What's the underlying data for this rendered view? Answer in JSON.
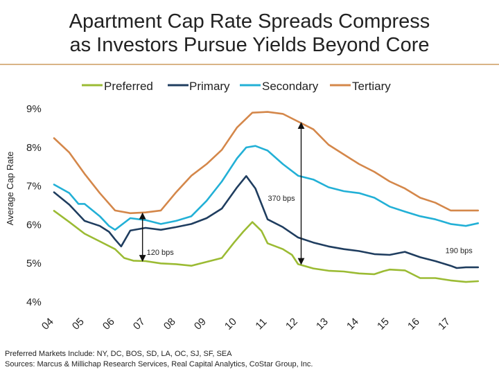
{
  "chart_data": {
    "type": "line",
    "title_line1": "Apartment Cap Rate Spreads Compress",
    "title_line2": "as Investors Pursue Yields Beyond Core",
    "ylabel": "Average Cap Rate",
    "ylim": [
      4,
      9
    ],
    "y_ticks": [
      {
        "value": 9,
        "label": "9%"
      },
      {
        "value": 8,
        "label": "8%"
      },
      {
        "value": 7,
        "label": "7%"
      },
      {
        "value": 6,
        "label": "6%"
      },
      {
        "value": 5,
        "label": "5%"
      },
      {
        "value": 4,
        "label": "4%"
      }
    ],
    "xlim": [
      2004,
      2017.95
    ],
    "x_ticks": [
      {
        "value": 2004,
        "label": "04"
      },
      {
        "value": 2005,
        "label": "05"
      },
      {
        "value": 2006,
        "label": "06"
      },
      {
        "value": 2007,
        "label": "07"
      },
      {
        "value": 2008,
        "label": "08"
      },
      {
        "value": 2009,
        "label": "09"
      },
      {
        "value": 2010,
        "label": "10"
      },
      {
        "value": 2011,
        "label": "11"
      },
      {
        "value": 2012,
        "label": "12"
      },
      {
        "value": 2013,
        "label": "13"
      },
      {
        "value": 2014,
        "label": "14"
      },
      {
        "value": 2015,
        "label": "15"
      },
      {
        "value": 2016,
        "label": "16"
      },
      {
        "value": 2017,
        "label": "17"
      }
    ],
    "series": [
      {
        "name": "Preferred",
        "color": "#9bbb33",
        "points": [
          [
            2004.0,
            6.34
          ],
          [
            2004.5,
            6.05
          ],
          [
            2005.0,
            5.75
          ],
          [
            2005.5,
            5.55
          ],
          [
            2006.0,
            5.35
          ],
          [
            2006.3,
            5.12
          ],
          [
            2006.6,
            5.05
          ],
          [
            2007.0,
            5.04
          ],
          [
            2007.5,
            4.98
          ],
          [
            2008.0,
            4.96
          ],
          [
            2008.5,
            4.92
          ],
          [
            2009.0,
            5.02
          ],
          [
            2009.5,
            5.12
          ],
          [
            2009.9,
            5.52
          ],
          [
            2010.2,
            5.8
          ],
          [
            2010.5,
            6.05
          ],
          [
            2010.8,
            5.82
          ],
          [
            2011.0,
            5.5
          ],
          [
            2011.5,
            5.35
          ],
          [
            2011.8,
            5.2
          ],
          [
            2012.0,
            4.96
          ],
          [
            2012.5,
            4.85
          ],
          [
            2013.0,
            4.79
          ],
          [
            2013.5,
            4.77
          ],
          [
            2014.0,
            4.72
          ],
          [
            2014.5,
            4.7
          ],
          [
            2014.8,
            4.78
          ],
          [
            2015.0,
            4.82
          ],
          [
            2015.5,
            4.8
          ],
          [
            2016.0,
            4.6
          ],
          [
            2016.5,
            4.6
          ],
          [
            2017.0,
            4.54
          ],
          [
            2017.5,
            4.5
          ],
          [
            2017.9,
            4.52
          ]
        ]
      },
      {
        "name": "Primary",
        "color": "#1f3d5f",
        "points": [
          [
            2004.0,
            6.82
          ],
          [
            2004.5,
            6.5
          ],
          [
            2005.0,
            6.08
          ],
          [
            2005.5,
            5.95
          ],
          [
            2005.8,
            5.8
          ],
          [
            2006.0,
            5.6
          ],
          [
            2006.2,
            5.42
          ],
          [
            2006.5,
            5.83
          ],
          [
            2007.0,
            5.9
          ],
          [
            2007.5,
            5.85
          ],
          [
            2008.0,
            5.92
          ],
          [
            2008.5,
            6.0
          ],
          [
            2009.0,
            6.15
          ],
          [
            2009.5,
            6.4
          ],
          [
            2010.0,
            6.95
          ],
          [
            2010.3,
            7.24
          ],
          [
            2010.6,
            6.92
          ],
          [
            2011.0,
            6.12
          ],
          [
            2011.5,
            5.92
          ],
          [
            2012.0,
            5.65
          ],
          [
            2012.5,
            5.52
          ],
          [
            2013.0,
            5.42
          ],
          [
            2013.5,
            5.35
          ],
          [
            2014.0,
            5.3
          ],
          [
            2014.5,
            5.22
          ],
          [
            2015.0,
            5.2
          ],
          [
            2015.5,
            5.28
          ],
          [
            2016.0,
            5.14
          ],
          [
            2016.5,
            5.04
          ],
          [
            2017.0,
            4.92
          ],
          [
            2017.2,
            4.86
          ],
          [
            2017.5,
            4.88
          ],
          [
            2017.9,
            4.88
          ]
        ]
      },
      {
        "name": "Secondary",
        "color": "#22b0d6",
        "points": [
          [
            2004.0,
            7.02
          ],
          [
            2004.5,
            6.8
          ],
          [
            2004.8,
            6.52
          ],
          [
            2005.0,
            6.52
          ],
          [
            2005.5,
            6.2
          ],
          [
            2005.8,
            5.95
          ],
          [
            2006.0,
            5.85
          ],
          [
            2006.5,
            6.15
          ],
          [
            2007.0,
            6.1
          ],
          [
            2007.5,
            6.0
          ],
          [
            2008.0,
            6.08
          ],
          [
            2008.5,
            6.2
          ],
          [
            2009.0,
            6.6
          ],
          [
            2009.5,
            7.1
          ],
          [
            2010.0,
            7.7
          ],
          [
            2010.3,
            7.98
          ],
          [
            2010.6,
            8.02
          ],
          [
            2011.0,
            7.9
          ],
          [
            2011.5,
            7.55
          ],
          [
            2012.0,
            7.25
          ],
          [
            2012.5,
            7.15
          ],
          [
            2013.0,
            6.95
          ],
          [
            2013.5,
            6.85
          ],
          [
            2014.0,
            6.8
          ],
          [
            2014.5,
            6.68
          ],
          [
            2015.0,
            6.45
          ],
          [
            2015.5,
            6.32
          ],
          [
            2016.0,
            6.2
          ],
          [
            2016.5,
            6.12
          ],
          [
            2017.0,
            6.0
          ],
          [
            2017.5,
            5.95
          ],
          [
            2017.9,
            6.02
          ]
        ]
      },
      {
        "name": "Tertiary",
        "color": "#d4874a",
        "points": [
          [
            2004.0,
            8.22
          ],
          [
            2004.5,
            7.85
          ],
          [
            2005.0,
            7.3
          ],
          [
            2005.5,
            6.8
          ],
          [
            2006.0,
            6.35
          ],
          [
            2006.5,
            6.28
          ],
          [
            2007.0,
            6.3
          ],
          [
            2007.5,
            6.35
          ],
          [
            2008.0,
            6.82
          ],
          [
            2008.5,
            7.25
          ],
          [
            2009.0,
            7.55
          ],
          [
            2009.5,
            7.92
          ],
          [
            2010.0,
            8.5
          ],
          [
            2010.5,
            8.88
          ],
          [
            2011.0,
            8.9
          ],
          [
            2011.5,
            8.85
          ],
          [
            2012.0,
            8.65
          ],
          [
            2012.5,
            8.45
          ],
          [
            2013.0,
            8.05
          ],
          [
            2013.5,
            7.8
          ],
          [
            2014.0,
            7.55
          ],
          [
            2014.5,
            7.35
          ],
          [
            2015.0,
            7.1
          ],
          [
            2015.5,
            6.92
          ],
          [
            2016.0,
            6.68
          ],
          [
            2016.5,
            6.55
          ],
          [
            2017.0,
            6.35
          ],
          [
            2017.5,
            6.35
          ],
          [
            2017.9,
            6.35
          ]
        ]
      }
    ],
    "annotations": [
      {
        "label": "120 bps",
        "x": 2006.9,
        "y_low": 5.04,
        "y_high": 6.28
      },
      {
        "label": "370 bps",
        "x": 2012.1,
        "y_low": 4.96,
        "y_high": 8.62
      },
      {
        "label": "190 bps",
        "x": 2017.9
      }
    ],
    "legend_position": "top-center"
  },
  "footnote": {
    "line1": "Preferred Markets Include: NY, DC, BOS, SD, LA, OC, SJ, SF, SEA",
    "line2": "Sources: Marcus & Millichap Research Services, Real Capital Analytics, CoStar Group, Inc."
  }
}
